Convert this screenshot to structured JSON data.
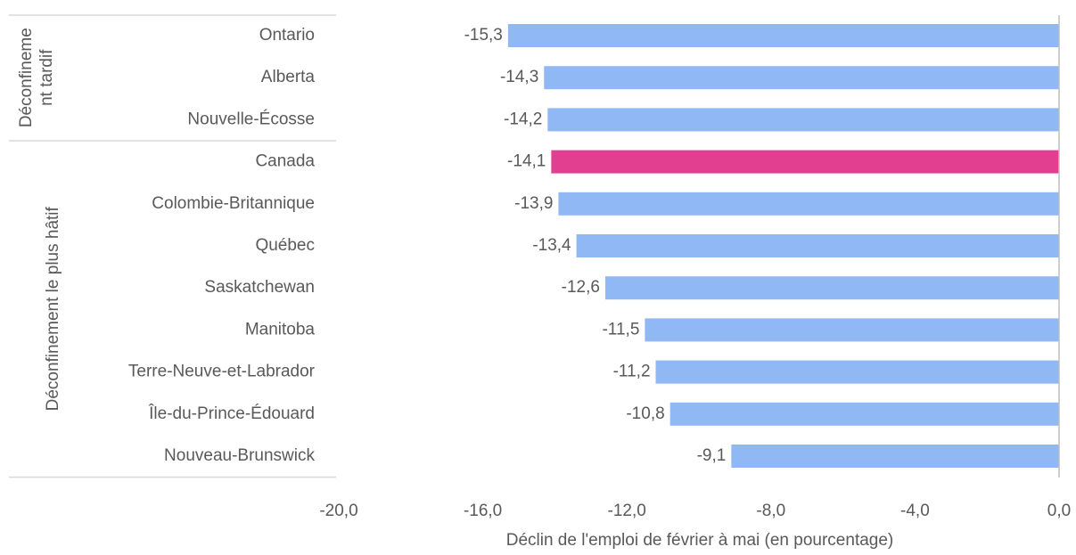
{
  "chart_data": {
    "type": "bar",
    "orientation": "horizontal",
    "categories": [
      "Ontario",
      "Alberta",
      "Nouvelle-Écosse",
      "Canada",
      "Colombie-Britannique",
      "Québec",
      "Saskatchewan",
      "Manitoba",
      "Terre-Neuve-et-Labrador",
      "Île-du-Prince-Édouard",
      "Nouveau-Brunswick"
    ],
    "values": [
      -15.3,
      -14.3,
      -14.2,
      -14.1,
      -13.9,
      -13.4,
      -12.6,
      -11.5,
      -11.2,
      -10.8,
      -9.1
    ],
    "value_labels": [
      "-15,3",
      "-14,3",
      "-14,2",
      "-14,1",
      "-13,9",
      "-13,4",
      "-12,6",
      "-11,5",
      "-11,2",
      "-10,8",
      "-9,1"
    ],
    "colors": [
      "#8fb8f5",
      "#8fb8f5",
      "#8fb8f5",
      "#e33f91",
      "#8fb8f5",
      "#8fb8f5",
      "#8fb8f5",
      "#8fb8f5",
      "#8fb8f5",
      "#8fb8f5",
      "#8fb8f5"
    ],
    "groups": [
      {
        "lines": [
          "Déconfineme",
          "nt tardif"
        ],
        "start": 0,
        "end": 2
      },
      {
        "lines": [
          "Déconfinement le plus hâtif"
        ],
        "start": 3,
        "end": 10
      }
    ],
    "xlabel": "Déclin de l'emploi de février à mai (en pourcentage)",
    "xlim": [
      -20,
      0
    ],
    "xticks": [
      {
        "value": -20,
        "label": "-20,0"
      },
      {
        "value": -16,
        "label": "-16,0"
      },
      {
        "value": -12,
        "label": "-12,0"
      },
      {
        "value": -8,
        "label": "-8,0"
      },
      {
        "value": -4,
        "label": "-4,0"
      },
      {
        "value": 0,
        "label": "0,0"
      }
    ]
  }
}
